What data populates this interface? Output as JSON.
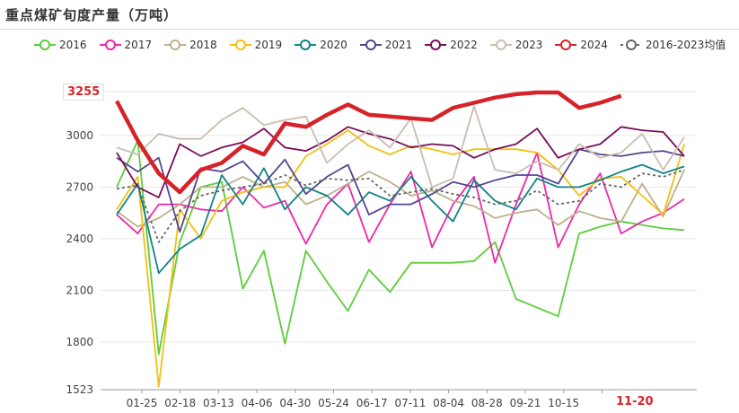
{
  "title": "重点煤矿旬度产量（万吨）",
  "chart_data": {
    "type": "line",
    "title": "重点煤矿旬度产量（万吨）",
    "ylim": [
      1523,
      3255
    ],
    "yticks": [
      1523,
      1800,
      2100,
      2400,
      2700,
      3000,
      3255
    ],
    "xlabels": [
      "01-25",
      "02-18",
      "03-13",
      "04-06",
      "04-30",
      "05-24",
      "06-17",
      "07-11",
      "08-04",
      "08-28",
      "09-21",
      "10-15",
      "11-20"
    ],
    "highlight_y": "3255",
    "highlight_x": "11-20",
    "legend_position": "top",
    "grid": "horizontal",
    "series": [
      {
        "name": "2016",
        "color": "#5ccd3a",
        "dash": "",
        "values": [
          2700,
          2970,
          1730,
          2380,
          2700,
          2730,
          2110,
          2330,
          1790,
          2330,
          2150,
          1980,
          2220,
          2090,
          2260,
          2260,
          2260,
          2270,
          2380,
          2050,
          2000,
          1950,
          2430,
          2470,
          2500,
          2480,
          2460,
          2450
        ]
      },
      {
        "name": "2017",
        "color": "#ee28a6",
        "dash": "",
        "values": [
          2540,
          2430,
          2600,
          2600,
          2570,
          2560,
          2700,
          2580,
          2620,
          2370,
          2600,
          2720,
          2380,
          2600,
          2790,
          2350,
          2600,
          2760,
          2260,
          2600,
          2900,
          2350,
          2600,
          2780,
          2430,
          2500,
          2550,
          2630
        ]
      },
      {
        "name": "2018",
        "color": "#bdb08a",
        "dash": "",
        "values": [
          2560,
          2470,
          2520,
          2600,
          2700,
          2700,
          2760,
          2700,
          2730,
          2600,
          2650,
          2720,
          2790,
          2730,
          2650,
          2680,
          2620,
          2590,
          2520,
          2550,
          2570,
          2480,
          2560,
          2520,
          2500,
          2720,
          2530,
          2800
        ]
      },
      {
        "name": "2019",
        "color": "#f2c011",
        "dash": "",
        "values": [
          2570,
          2760,
          1540,
          2570,
          2400,
          2620,
          2670,
          2700,
          2700,
          2880,
          2950,
          3030,
          2940,
          2890,
          2940,
          2920,
          2890,
          2920,
          2920,
          2920,
          2900,
          2800,
          2650,
          2750,
          2760,
          2650,
          2540,
          2950
        ]
      },
      {
        "name": "2020",
        "color": "#138285",
        "dash": "",
        "values": [
          2540,
          2720,
          2200,
          2340,
          2420,
          2770,
          2600,
          2810,
          2570,
          2700,
          2650,
          2540,
          2670,
          2620,
          2760,
          2620,
          2500,
          2740,
          2620,
          2570,
          2750,
          2700,
          2700,
          2740,
          2790,
          2830,
          2780,
          2820
        ]
      },
      {
        "name": "2021",
        "color": "#55458f",
        "dash": "",
        "values": [
          2870,
          2790,
          2870,
          2440,
          2810,
          2790,
          2850,
          2720,
          2860,
          2660,
          2760,
          2830,
          2540,
          2600,
          2600,
          2660,
          2730,
          2700,
          2740,
          2770,
          2770,
          2720,
          2920,
          2890,
          2880,
          2900,
          2910,
          2880
        ]
      },
      {
        "name": "2022",
        "color": "#770e5c",
        "dash": "",
        "values": [
          2900,
          2700,
          2640,
          2950,
          2880,
          2930,
          2960,
          3040,
          2930,
          2910,
          2970,
          3050,
          3010,
          2980,
          2930,
          2950,
          2940,
          2870,
          2920,
          2950,
          3040,
          2870,
          2920,
          2950,
          3050,
          3030,
          3020,
          2880
        ]
      },
      {
        "name": "2023",
        "color": "#c9bdb1",
        "dash": "",
        "values": [
          2930,
          2890,
          3010,
          2980,
          2980,
          3090,
          3160,
          3060,
          3090,
          3110,
          2840,
          2950,
          3030,
          2930,
          3100,
          2700,
          2750,
          3170,
          2800,
          2780,
          2850,
          2800,
          2950,
          2870,
          2900,
          3010,
          2800,
          2990
        ]
      },
      {
        "name": "2024",
        "color": "#d62329",
        "dash": "",
        "values": [
          3200,
          2970,
          2780,
          2670,
          2800,
          2840,
          2940,
          2890,
          3070,
          3050,
          3120,
          3180,
          3120,
          3110,
          3100,
          3090,
          3160,
          3190,
          3220,
          3240,
          3250,
          3250,
          3160,
          3190,
          3230
        ]
      },
      {
        "name": "2016-2023均值",
        "color": "#666666",
        "dash": "3,3",
        "values": [
          2690,
          2710,
          2380,
          2560,
          2650,
          2680,
          2700,
          2720,
          2770,
          2710,
          2750,
          2740,
          2750,
          2650,
          2670,
          2690,
          2660,
          2640,
          2600,
          2620,
          2680,
          2600,
          2620,
          2720,
          2700,
          2780,
          2760,
          2800
        ]
      }
    ]
  }
}
